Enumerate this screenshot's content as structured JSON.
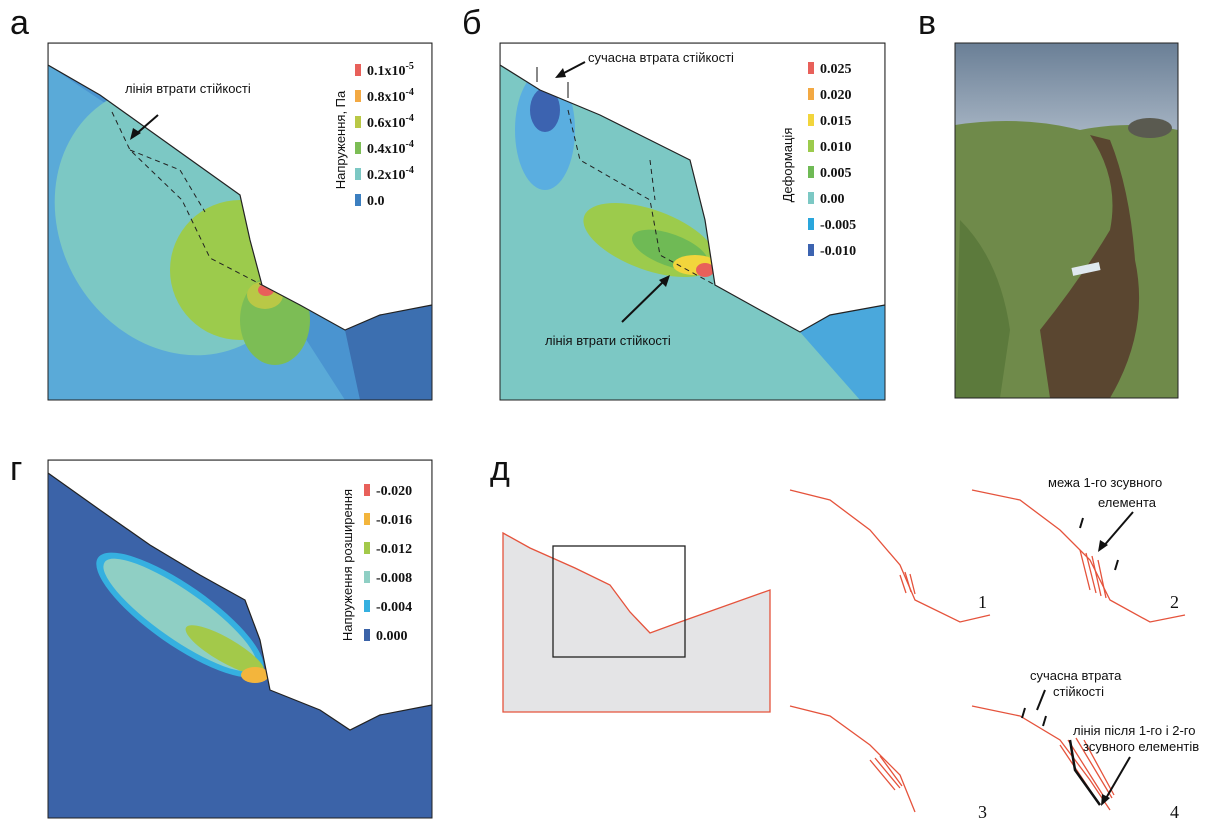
{
  "panels": [
    {
      "label": "а",
      "legend_title": "Напруження, Па",
      "legend": [
        {
          "base": "0.1x10",
          "exp": "-5"
        },
        {
          "base": "0.8x10",
          "exp": "-4"
        },
        {
          "base": "0.6x10",
          "exp": "-4"
        },
        {
          "base": "0.4x10",
          "exp": "-4"
        },
        {
          "base": "0.2x10",
          "exp": "-4"
        },
        {
          "base": "0.0"
        }
      ],
      "legend_colors": [
        "#e8605a",
        "#f3a943",
        "#b9c846",
        "#7cbd55",
        "#7cc8c4",
        "#3c7fc0"
      ],
      "annotation": "лінія втрати стійкості"
    },
    {
      "label": "б",
      "legend_title": "Деформація",
      "legend": [
        "0.025",
        "0.020",
        "0.015",
        "0.010",
        "0.005",
        "0.00",
        "-0.005",
        "-0.010"
      ],
      "legend_colors": [
        "#e8605a",
        "#f3a943",
        "#f2d53c",
        "#9ccb4c",
        "#6fba55",
        "#7cc8c4",
        "#2aa6dc",
        "#3c63b0"
      ],
      "annotations": [
        "сучасна втрата стійкості",
        "лінія втрати стійкості"
      ]
    },
    {
      "label": "в"
    },
    {
      "label": "г",
      "legend_title": "Напруження розширення",
      "legend": [
        "-0.020",
        "-0.016",
        "-0.012",
        "-0.008",
        "-0.004",
        "0.000"
      ],
      "legend_colors": [
        "#e8605a",
        "#f3b53c",
        "#a3c94a",
        "#8fcfc4",
        "#35b0e0",
        "#3b63a8"
      ]
    },
    {
      "label": "д",
      "annotations": [
        "межа 1-го зсувного",
        "елемента",
        "сучасна втрата",
        "стійкості",
        "лінія після 1-го і 2-го",
        "зсувного елементів"
      ],
      "numbers": [
        "1",
        "2",
        "3",
        "4"
      ]
    }
  ]
}
